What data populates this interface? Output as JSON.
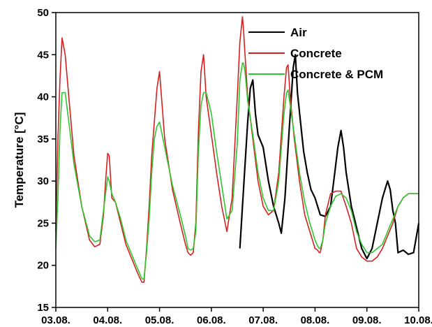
{
  "chart_data": {
    "type": "line",
    "title": "",
    "xlabel": "",
    "ylabel": "Temperature [°C]",
    "x_ticks": [
      "03.08.",
      "04.08.",
      "05.08.",
      "06.08.",
      "07.08.",
      "08.08.",
      "09.08.",
      "10.08."
    ],
    "y_ticks": [
      15,
      20,
      25,
      30,
      35,
      40,
      45,
      50
    ],
    "xlim": [
      0,
      7
    ],
    "ylim": [
      15,
      50
    ],
    "grid": false,
    "legend_position": "top-right",
    "series": [
      {
        "name": "Air",
        "color": "#000000",
        "start_x": 3.55,
        "x": [
          3.55,
          3.62,
          3.7,
          3.75,
          3.8,
          3.85,
          3.9,
          4.0,
          4.1,
          4.2,
          4.3,
          4.35,
          4.42,
          4.5,
          4.58,
          4.62,
          4.66,
          4.72,
          4.78,
          4.85,
          4.92,
          5.0,
          5.1,
          5.2,
          5.3,
          5.38,
          5.44,
          5.5,
          5.55,
          5.6,
          5.7,
          5.8,
          5.9,
          6.0,
          6.1,
          6.2,
          6.3,
          6.4,
          6.45,
          6.5,
          6.55,
          6.6,
          6.7,
          6.8,
          6.9,
          7.0,
          7.0
        ],
        "y": [
          22.0,
          29.0,
          37.0,
          41.0,
          42.0,
          38.0,
          35.5,
          34.0,
          30.0,
          27.0,
          25.0,
          23.8,
          28.0,
          36.0,
          43.5,
          45.0,
          40.5,
          37.0,
          33.5,
          31.0,
          29.0,
          28.0,
          26.0,
          25.8,
          27.0,
          31.0,
          34.0,
          36.0,
          34.0,
          31.0,
          27.0,
          24.5,
          22.0,
          20.8,
          22.0,
          25.0,
          28.0,
          30.0,
          29.0,
          26.5,
          25.0,
          21.5,
          21.8,
          21.3,
          21.5,
          25.0,
          25.0
        ]
      },
      {
        "name": "Concrete",
        "color": "#d42020",
        "x": [
          0.0,
          0.04,
          0.08,
          0.12,
          0.18,
          0.25,
          0.35,
          0.5,
          0.65,
          0.75,
          0.85,
          0.92,
          0.96,
          1.0,
          1.03,
          1.08,
          1.15,
          1.25,
          1.35,
          1.45,
          1.55,
          1.62,
          1.66,
          1.7,
          1.75,
          1.8,
          1.85,
          1.9,
          1.95,
          2.0,
          2.1,
          2.25,
          2.4,
          2.5,
          2.55,
          2.6,
          2.65,
          2.7,
          2.75,
          2.8,
          2.85,
          2.9,
          3.0,
          3.1,
          3.2,
          3.3,
          3.4,
          3.5,
          3.55,
          3.6,
          3.62,
          3.65,
          3.7,
          3.8,
          3.9,
          4.0,
          4.1,
          4.2,
          4.3,
          4.4,
          4.45,
          4.48,
          4.52,
          4.6,
          4.7,
          4.8,
          4.9,
          5.0,
          5.05,
          5.08,
          5.1,
          5.15,
          5.2,
          5.3,
          5.4,
          5.5,
          5.6,
          5.7,
          5.8,
          5.9,
          6.0,
          6.1,
          6.2,
          6.3,
          6.4,
          6.5,
          6.6,
          6.7,
          6.8,
          6.9,
          7.0
        ],
        "y": [
          24.0,
          35.0,
          42.0,
          47.0,
          45.0,
          40.0,
          33.0,
          27.0,
          23.0,
          22.2,
          22.5,
          26.0,
          30.0,
          33.3,
          33.0,
          28.0,
          27.5,
          25.0,
          22.5,
          21.0,
          19.5,
          18.5,
          18.0,
          18.0,
          22.0,
          27.0,
          33.0,
          37.0,
          41.0,
          43.0,
          35.0,
          29.0,
          25.0,
          22.5,
          21.5,
          21.2,
          21.5,
          25.0,
          36.0,
          43.0,
          45.0,
          40.0,
          35.5,
          31.0,
          27.0,
          24.0,
          28.0,
          40.0,
          46.5,
          49.5,
          48.0,
          45.0,
          40.0,
          35.0,
          30.0,
          27.0,
          26.0,
          26.5,
          31.0,
          40.0,
          43.5,
          43.8,
          40.0,
          35.0,
          30.0,
          26.0,
          24.0,
          22.0,
          21.8,
          21.5,
          21.5,
          23.0,
          26.0,
          28.5,
          28.8,
          28.8,
          27.0,
          25.0,
          22.0,
          21.0,
          20.5,
          20.5,
          21.0,
          22.0,
          23.5,
          25.0,
          27.0,
          28.0,
          28.5,
          28.5,
          28.5
        ]
      },
      {
        "name": "Concrete & PCM",
        "color": "#2ec62e",
        "x": [
          0.0,
          0.04,
          0.08,
          0.12,
          0.18,
          0.25,
          0.35,
          0.5,
          0.65,
          0.75,
          0.85,
          0.92,
          0.96,
          1.0,
          1.03,
          1.08,
          1.15,
          1.25,
          1.35,
          1.45,
          1.55,
          1.62,
          1.66,
          1.7,
          1.75,
          1.8,
          1.85,
          1.9,
          1.95,
          2.0,
          2.1,
          2.25,
          2.4,
          2.5,
          2.55,
          2.6,
          2.65,
          2.7,
          2.75,
          2.8,
          2.85,
          2.9,
          3.0,
          3.1,
          3.2,
          3.3,
          3.4,
          3.5,
          3.55,
          3.6,
          3.62,
          3.65,
          3.7,
          3.8,
          3.9,
          4.0,
          4.1,
          4.2,
          4.3,
          4.4,
          4.45,
          4.48,
          4.52,
          4.6,
          4.7,
          4.8,
          4.9,
          5.0,
          5.05,
          5.08,
          5.1,
          5.15,
          5.2,
          5.3,
          5.4,
          5.5,
          5.6,
          5.7,
          5.8,
          5.9,
          6.0,
          6.1,
          6.2,
          6.3,
          6.4,
          6.5,
          6.6,
          6.7,
          6.8,
          6.9,
          7.0
        ],
        "y": [
          22.0,
          28.0,
          36.0,
          40.5,
          40.5,
          37.0,
          32.0,
          27.0,
          23.5,
          22.8,
          23.0,
          26.5,
          28.5,
          30.5,
          30.0,
          28.5,
          27.5,
          25.5,
          23.0,
          21.5,
          20.0,
          19.0,
          18.4,
          18.4,
          21.5,
          25.5,
          31.0,
          35.0,
          36.5,
          37.0,
          34.0,
          29.5,
          26.0,
          23.5,
          22.0,
          21.8,
          22.0,
          24.0,
          33.5,
          39.0,
          40.5,
          40.5,
          38.0,
          33.5,
          29.5,
          25.5,
          26.5,
          34.5,
          42.0,
          44.0,
          44.0,
          43.0,
          39.5,
          35.5,
          31.0,
          28.0,
          26.5,
          26.5,
          30.0,
          38.0,
          40.5,
          40.8,
          39.0,
          35.5,
          31.0,
          27.5,
          25.0,
          23.0,
          22.3,
          22.0,
          22.0,
          23.0,
          25.0,
          27.0,
          28.2,
          28.5,
          28.0,
          26.5,
          24.0,
          22.5,
          21.5,
          21.5,
          22.0,
          22.5,
          24.0,
          25.5,
          27.0,
          28.0,
          28.5,
          28.5,
          28.5
        ]
      }
    ]
  }
}
